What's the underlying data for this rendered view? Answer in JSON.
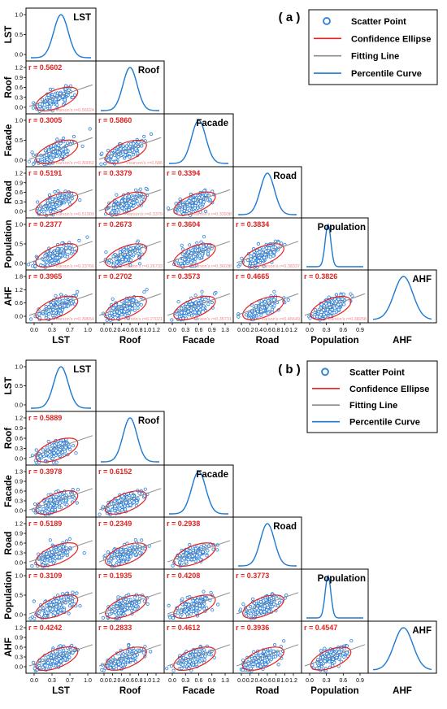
{
  "legend_items": [
    {
      "key": "scatter",
      "label": "Scatter Point"
    },
    {
      "key": "ellipse",
      "label": "Confidence Ellipse"
    },
    {
      "key": "fit",
      "label": "Fitting Line"
    },
    {
      "key": "curve",
      "label": "Percentile Curve"
    }
  ],
  "colors": {
    "point": "#2a7fd8",
    "curve": "#1e78d2",
    "ellipse": "#e8211f",
    "fit": "#8a8a8a",
    "r_text": "#e02020",
    "pearson_text": "#f08a8a",
    "axis": "#000000"
  },
  "chart_data": [
    {
      "type": "scatter",
      "panel_label": "( a )",
      "variables": [
        "LST",
        "Roof",
        "Facade",
        "Road",
        "Population",
        "AHF"
      ],
      "tick_labels": {
        "x": [
          [
            "0.0",
            "0.3",
            "0.7",
            "1.0"
          ],
          [
            "0.0",
            "0.2",
            "0.4",
            "0.6",
            "0.8",
            "1.0",
            "1.2"
          ],
          [
            "0.0",
            "0.3",
            "0.6",
            "0.9",
            "1.3"
          ],
          [
            "0.0",
            "0.2",
            "0.4",
            "0.6",
            "0.8",
            "1.0",
            "1.2"
          ],
          [
            "0.0",
            "0.3",
            "0.6",
            "0.9"
          ],
          []
        ],
        "y": [
          [
            "1.0",
            "0.5",
            "0.0"
          ],
          [
            "1.2",
            "0.9",
            "0.6",
            "0.3",
            "0.0"
          ],
          [
            "1.0",
            "0.5",
            "0.0"
          ],
          [
            "1.2",
            "0.9",
            "0.6",
            "0.3",
            "0.0"
          ],
          [
            "1.0",
            "0.5",
            "0.0"
          ],
          [
            "1.8",
            "1.2",
            "0.6",
            "0.0"
          ]
        ]
      },
      "correlations": [
        {
          "row": 1,
          "col": 0,
          "r": "r = 0.5602",
          "pearson": "Pearson's r=0.56024"
        },
        {
          "row": 2,
          "col": 0,
          "r": "r = 0.3005",
          "pearson": "Pearson's r=0.30052"
        },
        {
          "row": 2,
          "col": 1,
          "r": "r = 0.5860",
          "pearson": "Pearson's r=0.586"
        },
        {
          "row": 3,
          "col": 0,
          "r": "r = 0.5191",
          "pearson": "Pearson's r=0.51909"
        },
        {
          "row": 3,
          "col": 1,
          "r": "r = 0.3379",
          "pearson": "Pearson's r=0.3379"
        },
        {
          "row": 3,
          "col": 2,
          "r": "r = 0.3394",
          "pearson": "Pearson's r=0.33938"
        },
        {
          "row": 4,
          "col": 0,
          "r": "r = 0.2377",
          "pearson": "Pearson's r=0.23766"
        },
        {
          "row": 4,
          "col": 1,
          "r": "r = 0.2673",
          "pearson": "Pearson's r=0.26733"
        },
        {
          "row": 4,
          "col": 2,
          "r": "r = 0.3604",
          "pearson": "Pearson's r=0.36038"
        },
        {
          "row": 4,
          "col": 3,
          "r": "r = 0.3834",
          "pearson": "Pearson's r=0.38337"
        },
        {
          "row": 5,
          "col": 0,
          "r": "r = 0.3965",
          "pearson": "Pearson's r=0.39654"
        },
        {
          "row": 5,
          "col": 1,
          "r": "r = 0.2702",
          "pearson": "Pearson's r=0.27021"
        },
        {
          "row": 5,
          "col": 2,
          "r": "r = 0.3573",
          "pearson": "Pearson's r=0.35731"
        },
        {
          "row": 5,
          "col": 3,
          "r": "r = 0.4665",
          "pearson": "Pearson's r=0.46649"
        },
        {
          "row": 5,
          "col": 4,
          "r": "r = 0.3826",
          "pearson": "Pearson's r=0.38258"
        }
      ],
      "grid": false,
      "legend_position": "top-right"
    },
    {
      "type": "scatter",
      "panel_label": "( b )",
      "variables": [
        "LST",
        "Roof",
        "Facade",
        "Road",
        "Population",
        "AHF"
      ],
      "tick_labels": {
        "x": [
          [
            "0.0",
            "0.3",
            "0.7",
            "1.0"
          ],
          [
            "0.0",
            "0.2",
            "0.4",
            "0.6",
            "0.8",
            "1.0",
            "1.2"
          ],
          [
            "0.0",
            "0.3",
            "0.6",
            "0.9",
            "1.3"
          ],
          [
            "0.0",
            "0.2",
            "0.4",
            "0.6",
            "0.8",
            "1.0",
            "1.2"
          ],
          [
            "0.0",
            "0.3",
            "0.6",
            "0.9"
          ],
          []
        ],
        "y": [
          [
            "1.0",
            "0.5",
            "0.0"
          ],
          [
            "1.2",
            "0.9",
            "0.6",
            "0.3",
            "0.0"
          ],
          [
            "1.3",
            "0.9",
            "0.6",
            "0.3",
            "0.0"
          ],
          [
            "1.2",
            "0.9",
            "0.6",
            "0.3",
            "0.0"
          ],
          [
            "1.0",
            "0.5",
            "0.0"
          ],
          [
            "1.2",
            "0.9",
            "0.6",
            "0.3",
            "0.0"
          ]
        ]
      },
      "correlations": [
        {
          "row": 1,
          "col": 0,
          "r": "r = 0.5889"
        },
        {
          "row": 2,
          "col": 0,
          "r": "r = 0.3978"
        },
        {
          "row": 2,
          "col": 1,
          "r": "r = 0.6152"
        },
        {
          "row": 3,
          "col": 0,
          "r": "r = 0.5189"
        },
        {
          "row": 3,
          "col": 1,
          "r": "r = 0.2349"
        },
        {
          "row": 3,
          "col": 2,
          "r": "r = 0.2938"
        },
        {
          "row": 4,
          "col": 0,
          "r": "r = 0.3109"
        },
        {
          "row": 4,
          "col": 1,
          "r": "r = 0.1935"
        },
        {
          "row": 4,
          "col": 2,
          "r": "r = 0.4208"
        },
        {
          "row": 4,
          "col": 3,
          "r": "r = 0.3773"
        },
        {
          "row": 5,
          "col": 0,
          "r": "r = 0.4242"
        },
        {
          "row": 5,
          "col": 1,
          "r": "r = 0.2833"
        },
        {
          "row": 5,
          "col": 2,
          "r": "r = 0.4612"
        },
        {
          "row": 5,
          "col": 3,
          "r": "r = 0.3936"
        },
        {
          "row": 5,
          "col": 4,
          "r": "r = 0.4547"
        }
      ],
      "grid": false,
      "legend_position": "top-right"
    }
  ]
}
